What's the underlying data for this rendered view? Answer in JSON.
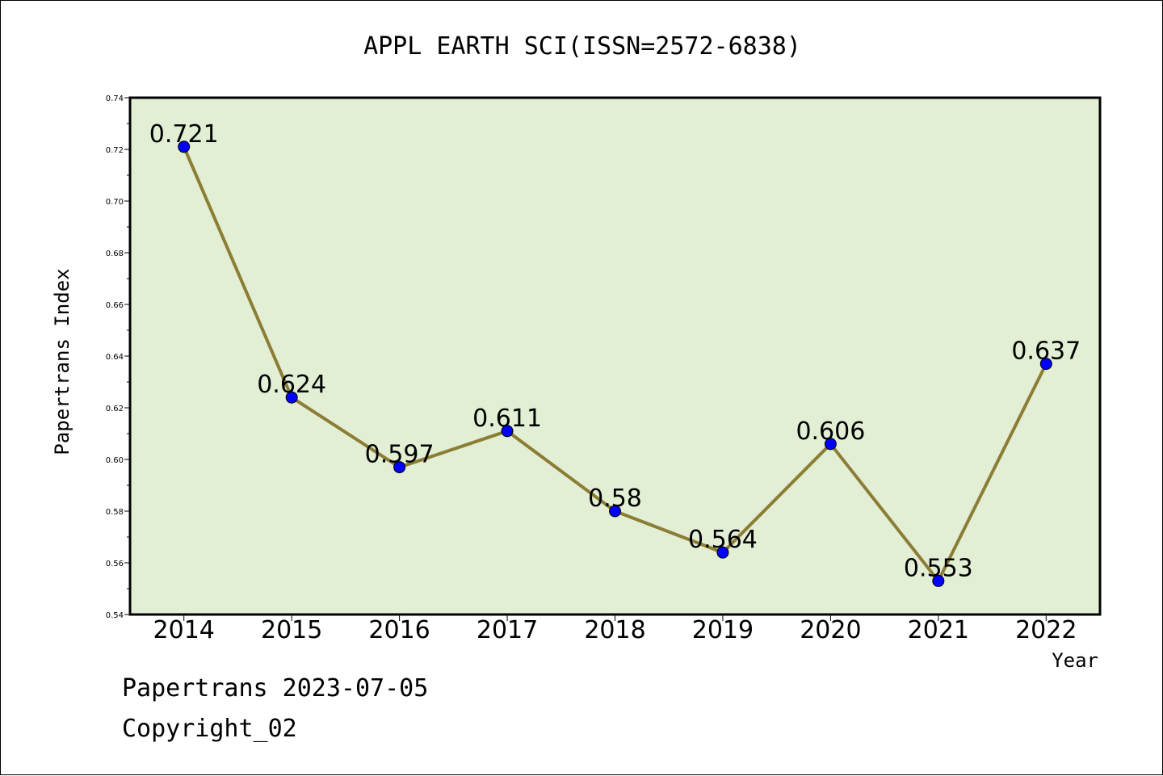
{
  "chart_data": {
    "type": "line",
    "title": "APPL EARTH SCI(ISSN=2572-6838)",
    "xlabel": "Year",
    "ylabel": "Papertrans Index",
    "categories": [
      "2014",
      "2015",
      "2016",
      "2017",
      "2018",
      "2019",
      "2020",
      "2021",
      "2022"
    ],
    "series": [
      {
        "values": [
          0.721,
          0.624,
          0.597,
          0.611,
          0.58,
          0.564,
          0.606,
          0.553,
          0.637
        ]
      }
    ],
    "data_labels": [
      "0.721",
      "0.624",
      "0.597",
      "0.611",
      "0.58",
      "0.564",
      "0.606",
      "0.553",
      "0.637"
    ],
    "yticks": [
      "0.54",
      "0.56",
      "0.58",
      "0.60",
      "0.62",
      "0.64",
      "0.66",
      "0.68",
      "0.70",
      "0.72",
      "0.74"
    ],
    "ylim": [
      0.54,
      0.74
    ],
    "grid": false,
    "colors": {
      "plot_background": "#e2efd4",
      "line": "#8b7d35",
      "marker": "#0000ff"
    }
  },
  "footer": {
    "date_text": "Papertrans 2023-07-05",
    "copyright_text": "Copyright_02"
  }
}
